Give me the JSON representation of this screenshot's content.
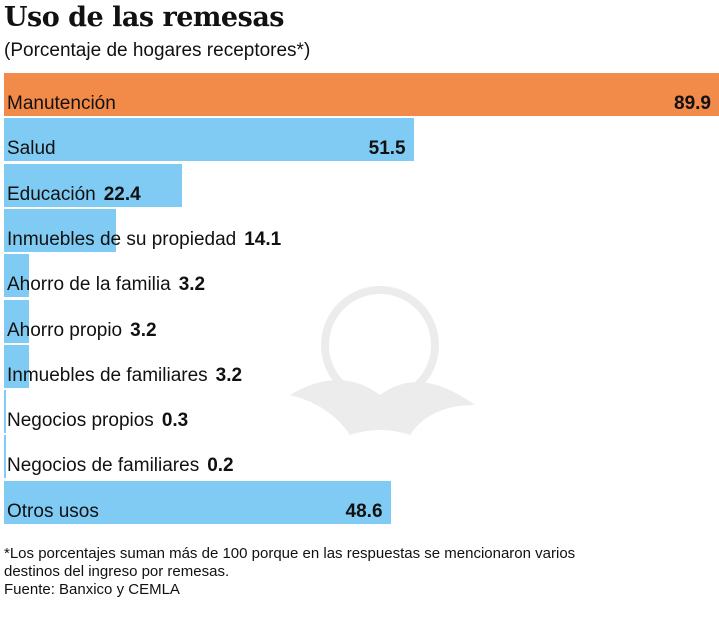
{
  "chart_data": {
    "type": "bar",
    "orientation": "horizontal",
    "title": "Uso de las remesas",
    "subtitle": "(Porcentaje de hogares receptores*)",
    "categories": [
      "Manutención",
      "Salud",
      "Educación",
      "Inmuebles de su propiedad",
      "Ahorro de la familia",
      "Ahorro propio",
      "Inmuebles de familiares",
      "Negocios propios",
      "Negocios de familiares",
      "Otros usos"
    ],
    "values": [
      89.9,
      51.5,
      22.4,
      14.1,
      3.2,
      3.2,
      3.2,
      0.3,
      0.2,
      48.6
    ],
    "value_labels": [
      "89.9",
      "51.5",
      "22.4",
      "14.1",
      "3.2",
      "3.2",
      "3.2",
      "0.3",
      "0.2",
      "48.6"
    ],
    "colors": {
      "highlight": "#f28a4a",
      "default": "#7fcbf3"
    },
    "highlight_index": 0,
    "xlim": [
      0,
      90
    ],
    "grid": false,
    "notes": [
      "*Los porcentajes suman más de 100 porque en las respuestas se mencionaron varios",
      "destinos del ingreso por remesas.",
      "Fuente: Banxico y CEMLA"
    ]
  }
}
